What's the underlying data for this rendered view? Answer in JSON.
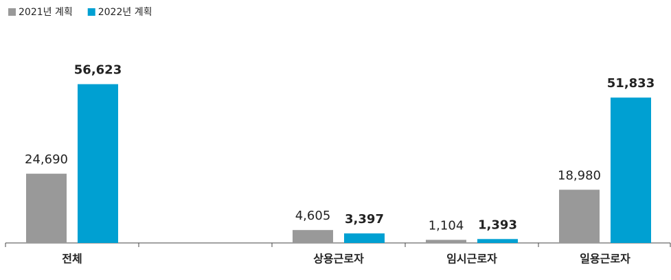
{
  "chart_data": {
    "type": "bar",
    "categories": [
      "전체",
      null,
      "상용근로자",
      "임시근로자",
      "일용근로자"
    ],
    "series": [
      {
        "name": "2021년 계획",
        "color": "#999999",
        "values": [
          24690,
          null,
          4605,
          1104,
          18980
        ],
        "value_labels": [
          "24,690",
          null,
          "4,605",
          "1,104",
          "18,980"
        ]
      },
      {
        "name": "2022년 계획",
        "color": "#00a0d2",
        "values": [
          56623,
          null,
          3397,
          1393,
          51833
        ],
        "value_labels": [
          "56,623",
          null,
          "3,397",
          "1,393",
          "51,833"
        ]
      }
    ],
    "ylim": [
      0,
      58000
    ],
    "legend": "top-left"
  }
}
